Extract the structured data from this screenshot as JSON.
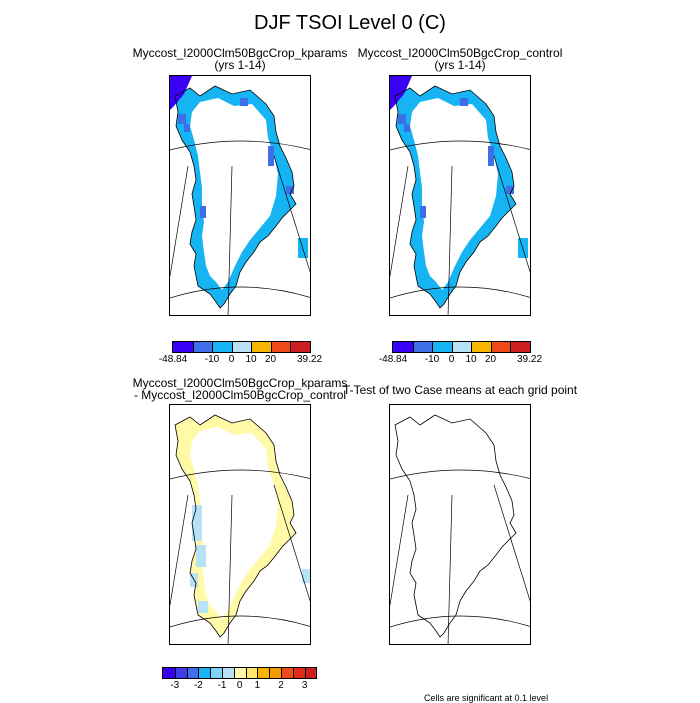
{
  "figure": {
    "title": "DJF TSOI Level 0 (C)"
  },
  "panels": [
    {
      "id": "p1",
      "title_line1": "Myccost_I2000Clm50BgcCrop_kparams",
      "title_line2": "(yrs 1-14)",
      "fill": "cold"
    },
    {
      "id": "p2",
      "title_line1": "Myccost_I2000Clm50BgcCrop_control",
      "title_line2": "(yrs 1-14)",
      "fill": "cold"
    },
    {
      "id": "p3",
      "title_line1": "Myccost_I2000Clm50BgcCrop_kparams",
      "title_line2": " - Myccost_I2000Clm50BgcCrop_control",
      "fill": "diff"
    },
    {
      "id": "p4",
      "title_line1": "T-Test of two Case means at each grid point",
      "title_line2": "",
      "fill": "none"
    }
  ],
  "colorbar_abs": {
    "colors": [
      "#3a00f5",
      "#3f6fe8",
      "#16b4f2",
      "#b8e2f5",
      "#f7b500",
      "#ef4a1a",
      "#cc1f1f"
    ],
    "labels": [
      {
        "text": "-48.84",
        "pos": 0
      },
      {
        "text": "-10",
        "pos": 2
      },
      {
        "text": "0",
        "pos": 3
      },
      {
        "text": "10",
        "pos": 4
      },
      {
        "text": "20",
        "pos": 5
      },
      {
        "text": "39.22",
        "pos": 7
      }
    ]
  },
  "colorbar_diff": {
    "colors": [
      "#3a00f5",
      "#3f3fea",
      "#3f6fe8",
      "#16b4f2",
      "#7fd0f2",
      "#b8e2f5",
      "#fff9a8",
      "#ffe86a",
      "#f7b500",
      "#f59a00",
      "#ef4a1a",
      "#e02a1a",
      "#cc1f1f"
    ],
    "labels": [
      {
        "text": "-3",
        "pos": 1
      },
      {
        "text": "-2",
        "pos": 3
      },
      {
        "text": "-1",
        "pos": 5
      },
      {
        "text": "0",
        "pos": 6.5
      },
      {
        "text": "1",
        "pos": 8
      },
      {
        "text": "2",
        "pos": 10
      },
      {
        "text": "3",
        "pos": 12
      }
    ]
  },
  "ttest_note": "Cells are significant at 0.1 level"
}
